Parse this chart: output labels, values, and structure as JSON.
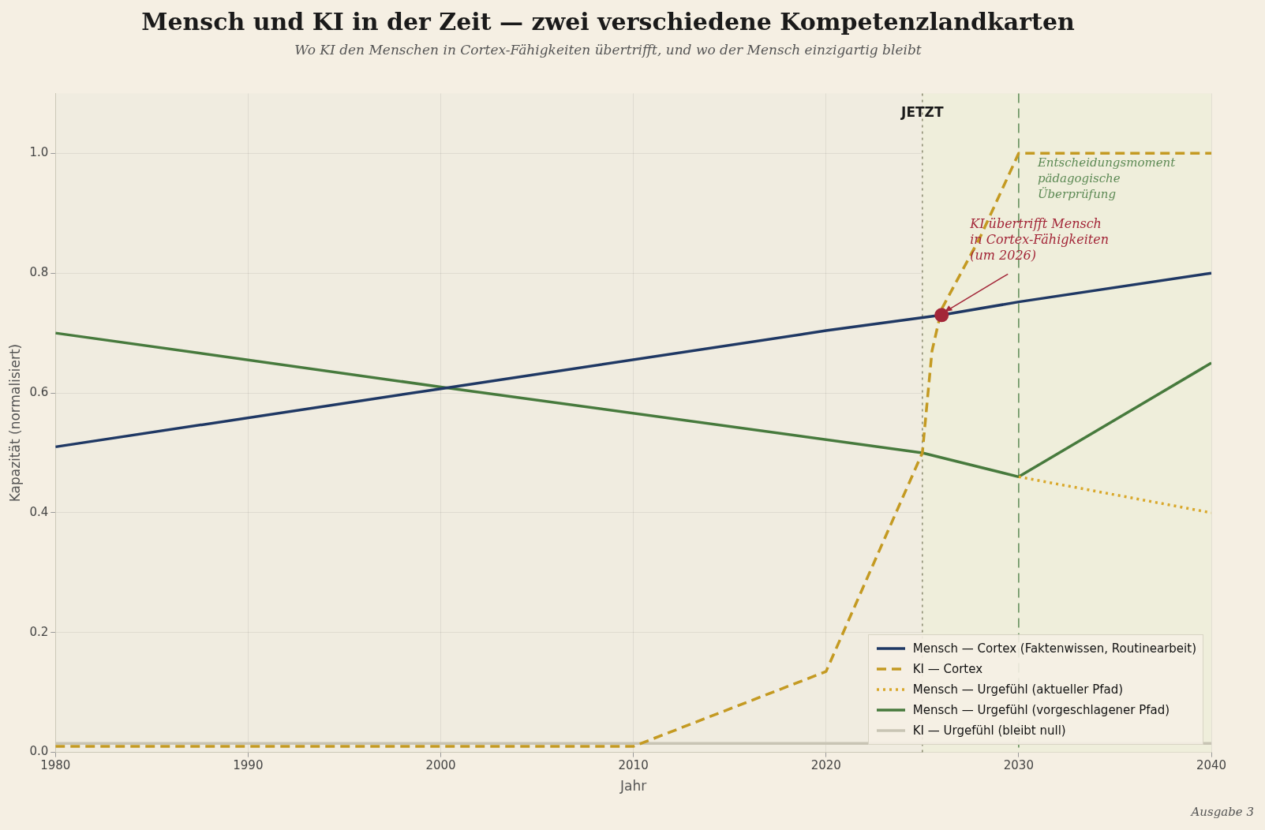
{
  "chart_data": {
    "type": "line",
    "title": "Mensch und KI in der Zeit — zwei verschiedene Kompetenzlandkarten",
    "subtitle": "Wo KI den Menschen in Cortex-Fähigkeiten übertrifft, und wo der Mensch einzigartig bleibt",
    "xlabel": "Jahr",
    "ylabel": "Kapazität (normalisiert)",
    "xlim": [
      1980,
      2040
    ],
    "xticks": [
      1980,
      1990,
      2000,
      2010,
      2020,
      2030,
      2040
    ],
    "ylim": [
      0,
      1.1
    ],
    "yticks": [
      {
        "value": 0,
        "label": "0.0"
      },
      {
        "value": 0.2,
        "label": "0.2"
      },
      {
        "value": 0.4,
        "label": "0.4"
      },
      {
        "value": 0.6,
        "label": "0.6"
      },
      {
        "value": 0.8,
        "label": "0.8"
      },
      {
        "value": 1,
        "label": "1.0"
      }
    ],
    "grid": true,
    "legend": "bottom right",
    "marker": "none",
    "series": [
      {
        "name": "Mensch — Cortex (Faktenwissen, Routinearbeit)",
        "color": "#1f3864",
        "line_style": "solid",
        "x": [
          1980,
          2000,
          2020,
          2026,
          2030,
          2040
        ],
        "values": [
          0.51,
          0.607,
          0.704,
          0.73,
          0.752,
          0.8
        ]
      },
      {
        "name": "KI — Cortex",
        "color": "#c49a22",
        "line_style": "dashed",
        "x": [
          1980,
          2010,
          2020,
          2025,
          2025.5,
          2026,
          2027,
          2028,
          2029,
          2030,
          2040
        ],
        "values": [
          0.01,
          0.01,
          0.135,
          0.5,
          0.67,
          0.74,
          0.8,
          0.86,
          0.93,
          1.0,
          1.0
        ]
      },
      {
        "name": "Mensch — Urgefühl (aktueller Pfad)",
        "color": "#d9a82b",
        "line_style": "dotted",
        "x": [
          2030,
          2040
        ],
        "values": [
          0.46,
          0.4
        ]
      },
      {
        "name": "Mensch — Urgefühl (vorgeschlagener Pfad)",
        "color": "#477a3d",
        "line_style": "solid",
        "x": [
          1980,
          2000,
          2025,
          2030,
          2040
        ],
        "values": [
          0.7,
          0.61,
          0.5,
          0.46,
          0.65
        ]
      },
      {
        "name": "KI — Urgefühl (bleibt null)",
        "color": "#c8c4b4",
        "line_style": "solid",
        "x": [
          1980,
          2040
        ],
        "values": [
          0.015,
          0.015
        ]
      }
    ],
    "bands": [
      {
        "axis": "x",
        "from": 2025,
        "to": 2040,
        "color": "#efeedb"
      }
    ],
    "ref_lines": [
      {
        "axis": "x",
        "value": 2025,
        "label": "JETZT",
        "color": "#8a8a70",
        "line_style": "dotted"
      },
      {
        "axis": "x",
        "value": 2030,
        "label": "Entscheidungsmoment\npädagogische\nÜberprüfung",
        "color": "#5d8a55",
        "line_style": "dashed"
      }
    ],
    "annotations": [
      {
        "text": "KI übertrifft Mensch\nin Cortex-Fähigkeiten\n(um 2026)",
        "x": 2026,
        "y": 0.73
      },
      "Ausgabe 3"
    ]
  }
}
